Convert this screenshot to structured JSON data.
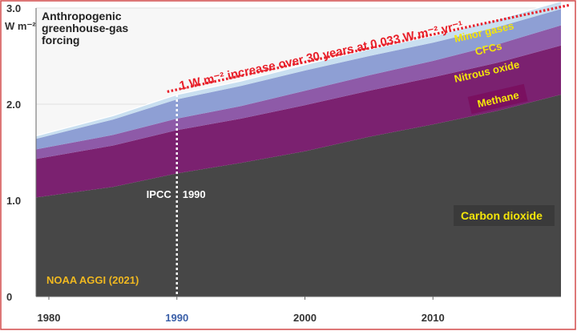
{
  "chart_data": {
    "type": "area",
    "title_lines": [
      "Anthropogenic",
      "greenhouse-gas",
      "forcing"
    ],
    "yunit": "W m⁻²",
    "ylim": [
      0,
      3.0
    ],
    "yticks": [
      0,
      1.0,
      2.0,
      3.0
    ],
    "ytick_labels": [
      "0",
      "1.0",
      "2.0",
      "3.0"
    ],
    "xlim": [
      1979,
      2020
    ],
    "xticks": [
      1980,
      1990,
      2000,
      2010
    ],
    "xtick_labels": [
      "1980",
      "1990",
      "2000",
      "2010"
    ],
    "highlight_tick": 1990,
    "x": [
      1979,
      1985,
      1990,
      1995,
      2000,
      2005,
      2010,
      2015,
      2020
    ],
    "series": [
      {
        "name": "Carbon dioxide",
        "color": "#474747",
        "values": [
          1.03,
          1.14,
          1.28,
          1.39,
          1.51,
          1.66,
          1.79,
          1.93,
          2.1
        ]
      },
      {
        "name": "Methane",
        "color": "#7b2170",
        "values": [
          0.4,
          0.43,
          0.45,
          0.46,
          0.48,
          0.48,
          0.49,
          0.5,
          0.51
        ]
      },
      {
        "name": "Nitrous oxide",
        "color": "#8e5aa8",
        "values": [
          0.1,
          0.11,
          0.12,
          0.13,
          0.15,
          0.16,
          0.17,
          0.19,
          0.21
        ]
      },
      {
        "name": "CFCs",
        "color": "#8e9fd4",
        "values": [
          0.11,
          0.16,
          0.2,
          0.21,
          0.21,
          0.2,
          0.19,
          0.18,
          0.17
        ]
      },
      {
        "name": "Minor gases",
        "color": "#c9dff0",
        "values": [
          0.03,
          0.04,
          0.05,
          0.05,
          0.06,
          0.07,
          0.07,
          0.08,
          0.08
        ]
      }
    ],
    "annotations": {
      "trend_label": "1 W m⁻² increase over 30 years at 0.033 W m⁻² yr⁻¹",
      "trend_from": [
        1990,
        2.13
      ],
      "trend_to": [
        2020,
        3.16
      ],
      "ipcc_label": "IPCC",
      "ipcc_year_label": "1990",
      "ipcc_year": 1990,
      "source": "NOAA AGGI (2021)"
    },
    "label_colors": {
      "legend_text": "#f5e60a",
      "trend": "#e8202a",
      "source": "#f0b820",
      "methane_box": "#7a1060",
      "co2_box": "#3a3a3a",
      "highlight_tick": "#3a5fa8"
    }
  }
}
